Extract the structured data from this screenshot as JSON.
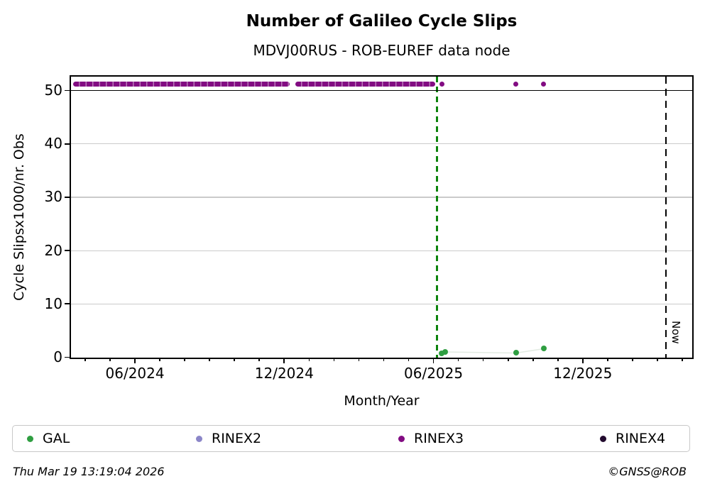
{
  "header": {
    "title": "Number of Galileo Cycle Slips",
    "subtitle": "MDVJ00RUS - ROB-EUREF data node"
  },
  "footer": {
    "timestamp": "Thu Mar 19 13:19:04 2026",
    "credit": "©GNSS@ROB"
  },
  "legend": [
    {
      "label": "GAL",
      "color": "#2f9e41"
    },
    {
      "label": "RINEX2",
      "color": "#8b86c8"
    },
    {
      "label": "RINEX3",
      "color": "#820c82"
    },
    {
      "label": "RINEX4",
      "color": "#220a2e"
    }
  ],
  "chart_data": {
    "type": "scatter",
    "title": "Number of Galileo Cycle Slips",
    "subtitle": "MDVJ00RUS - ROB-EUREF data node",
    "xlabel": "Month/Year",
    "ylabel": "Cycle Slipsx1000/nr. Obs",
    "grid": "horizontal",
    "legend_position": "bottom",
    "x_axis": {
      "unit": "months_since_2024_01",
      "range": [
        2.43,
        27.4
      ],
      "major_ticks": [
        {
          "m": 5,
          "label": "06/2024"
        },
        {
          "m": 11,
          "label": "12/2024"
        },
        {
          "m": 17,
          "label": "06/2025"
        },
        {
          "m": 23,
          "label": "12/2025"
        }
      ],
      "minor_tick_range": [
        3,
        27
      ]
    },
    "y_axis": {
      "range": [
        0,
        52.6
      ],
      "ticks": [
        0,
        10,
        20,
        30,
        40,
        50
      ],
      "gridlines": [
        10,
        20,
        30,
        40
      ],
      "threshold_line": 50
    },
    "series": [
      {
        "name": "RINEX3",
        "color": "#820c82",
        "marker": "dot",
        "value_level": 51.2,
        "band_segments": [
          {
            "m_start": 2.52,
            "m_end": 11.22,
            "y": 51.2,
            "note": "dense daily points mid-03/2024 to mid-12/2024"
          },
          {
            "m_start": 11.45,
            "m_end": 17.07,
            "y": 51.2,
            "note": "dense daily points late-12/2024 to early-06/2025"
          }
        ],
        "points": [
          {
            "m": 17.33,
            "y": 51.2,
            "date": "06/2025"
          },
          {
            "m": 20.3,
            "y": 51.2,
            "date": "09/2025"
          },
          {
            "m": 21.43,
            "y": 51.2,
            "date": "10/2025"
          }
        ]
      },
      {
        "name": "GAL",
        "color": "#2f9e41",
        "marker": "dot",
        "points": [
          {
            "m": 17.33,
            "y": 0.7,
            "date": "06/2025"
          },
          {
            "m": 17.47,
            "y": 1.0,
            "date": "06/2025"
          },
          {
            "m": 20.32,
            "y": 0.8,
            "date": "09/2025"
          },
          {
            "m": 21.43,
            "y": 1.6,
            "date": "10/2025"
          }
        ]
      },
      {
        "name": "RINEX2",
        "color": "#8b86c8",
        "marker": "dot",
        "points": []
      },
      {
        "name": "RINEX4",
        "color": "#220a2e",
        "marker": "dot",
        "points": []
      }
    ],
    "vlines": [
      {
        "m": 17.13,
        "color": "#0d830d",
        "style": "dashed",
        "name": "event-line",
        "label": ""
      },
      {
        "m": 26.35,
        "color": "#000000",
        "style": "dashed",
        "name": "now-line",
        "label": "Now"
      }
    ]
  }
}
